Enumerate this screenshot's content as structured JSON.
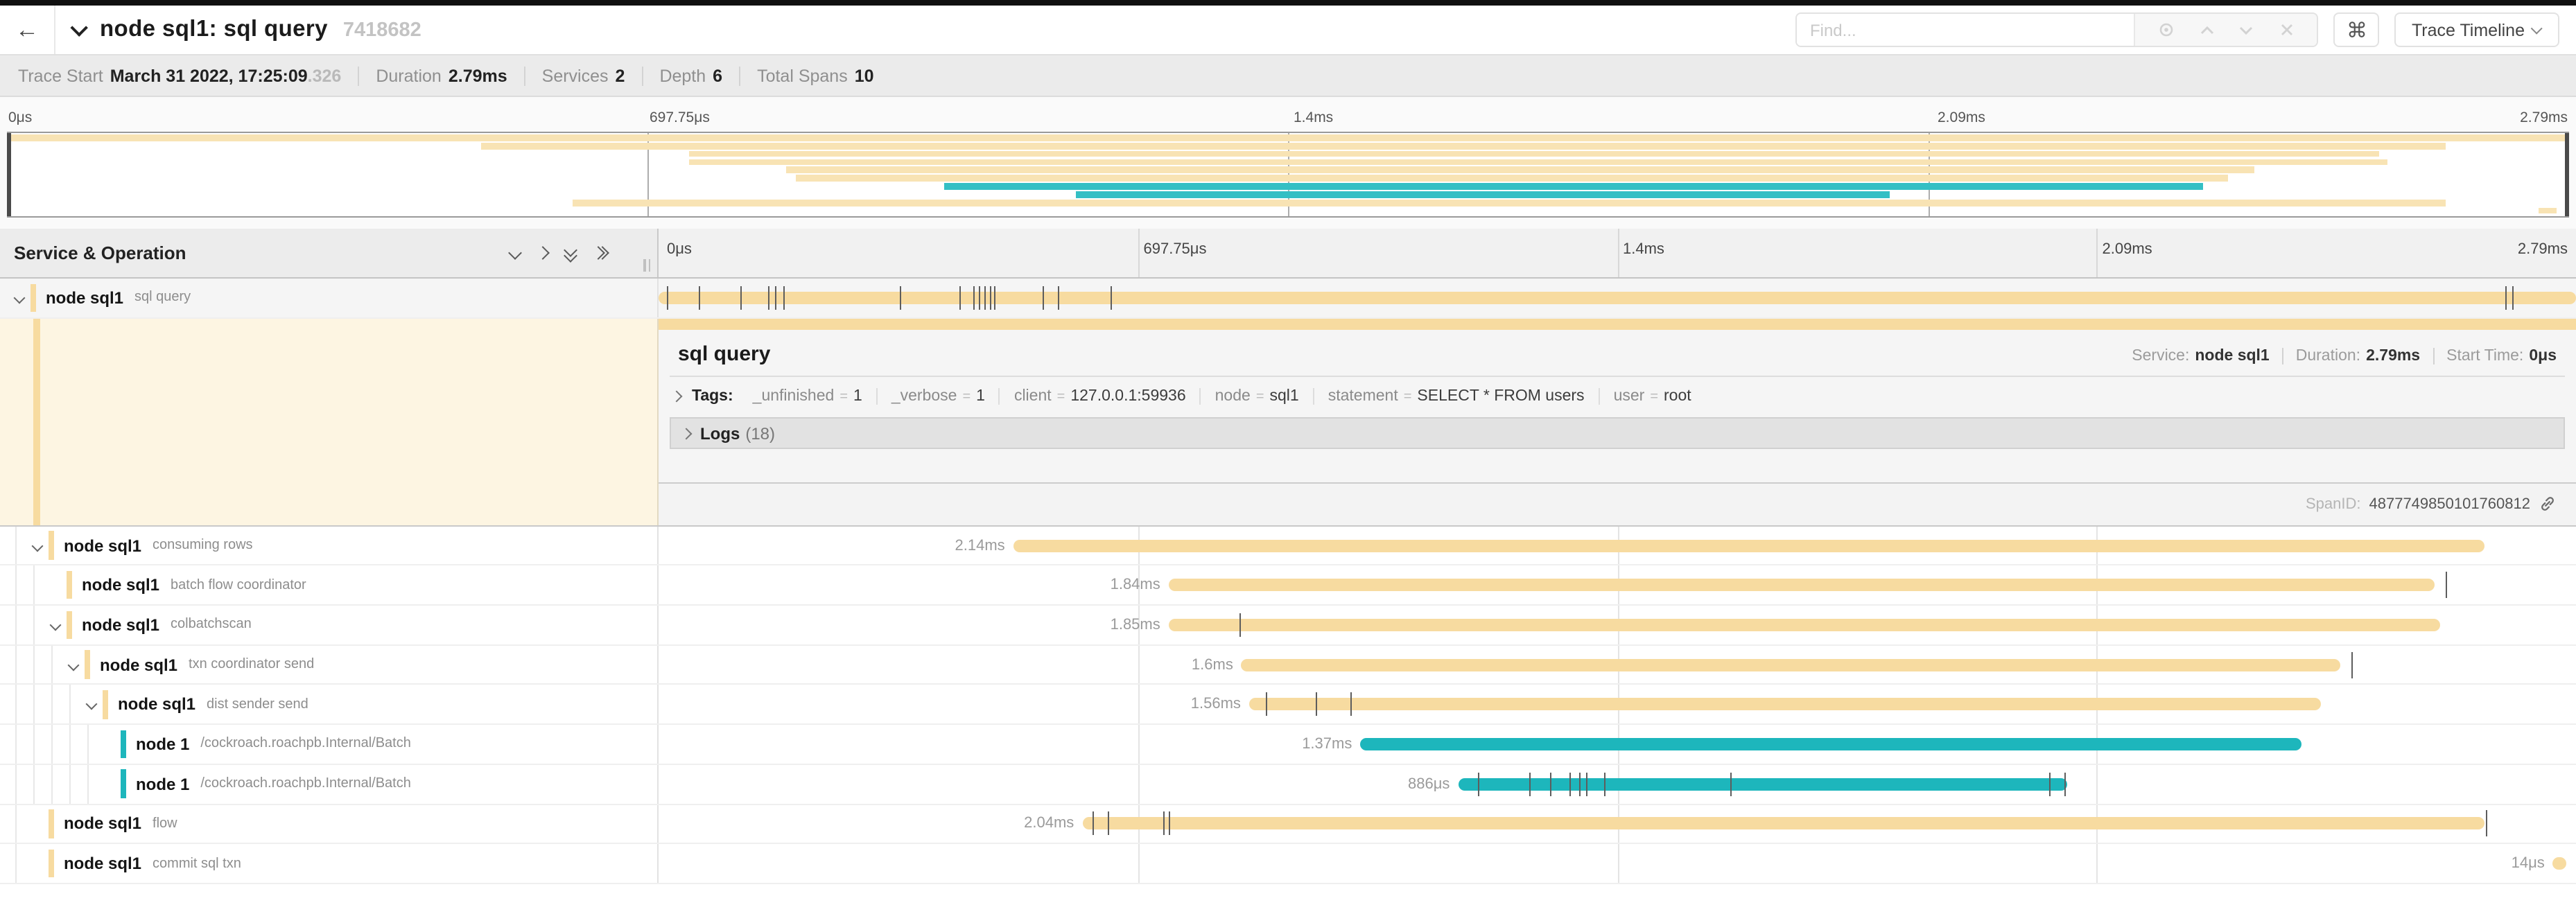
{
  "header": {
    "back_label": "←",
    "title": "node sql1: sql query",
    "trace_id": "7418682",
    "find_placeholder": "Find...",
    "shortcut_glyph": "⌘",
    "view_button": "Trace Timeline"
  },
  "trace_meta": {
    "items": [
      {
        "label": "Trace Start",
        "value": "March 31 2022, 17:25:09",
        "suffix": ".326"
      },
      {
        "label": "Duration",
        "value": "2.79ms"
      },
      {
        "label": "Services",
        "value": "2"
      },
      {
        "label": "Depth",
        "value": "6"
      },
      {
        "label": "Total Spans",
        "value": "10"
      }
    ]
  },
  "timeline": {
    "ticks": [
      {
        "label": "0μs",
        "pct": 0
      },
      {
        "label": "697.75μs",
        "pct": 25
      },
      {
        "label": "1.4ms",
        "pct": 50
      },
      {
        "label": "2.09ms",
        "pct": 75
      },
      {
        "label": "2.79ms",
        "pct": 100
      }
    ],
    "grid_pcts": [
      25,
      50,
      75
    ],
    "left_header": "Service & Operation"
  },
  "colors": {
    "tan": "#f7dba0",
    "teal": "#1db6bc",
    "detail_left_bg": "#fdf5e2"
  },
  "spans": [
    {
      "service": "node sql1",
      "operation": "sql query",
      "depth": 0,
      "expander": true,
      "color": "#f7dba0",
      "start_pct": 0,
      "width_pct": 100,
      "duration_label": "",
      "selected": true,
      "ticks": [
        0.4,
        2.1,
        4.3,
        5.7,
        6.1,
        6.5,
        12.6,
        15.7,
        16.4,
        16.7,
        17.0,
        17.3,
        17.5,
        20.0,
        20.8,
        23.6,
        96.3,
        96.7
      ],
      "end_tick": null
    },
    {
      "service": "node sql1",
      "operation": "consuming rows",
      "depth": 1,
      "expander": true,
      "color": "#f7dba0",
      "start_pct": 18.5,
      "width_pct": 76.7,
      "duration_label": "2.14ms",
      "ticks": [],
      "end_tick": null
    },
    {
      "service": "node sql1",
      "operation": "batch flow coordinator",
      "depth": 2,
      "expander": false,
      "color": "#f7dba0",
      "start_pct": 26.6,
      "width_pct": 66.0,
      "duration_label": "1.84ms",
      "ticks": [],
      "end_tick": 93.2
    },
    {
      "service": "node sql1",
      "operation": "colbatchscan",
      "depth": 2,
      "expander": true,
      "color": "#f7dba0",
      "start_pct": 26.6,
      "width_pct": 66.3,
      "duration_label": "1.85ms",
      "ticks": [
        30.3
      ],
      "end_tick": null
    },
    {
      "service": "node sql1",
      "operation": "txn coordinator send",
      "depth": 3,
      "expander": true,
      "color": "#f7dba0",
      "start_pct": 30.4,
      "width_pct": 57.3,
      "duration_label": "1.6ms",
      "ticks": [],
      "end_tick": 88.3
    },
    {
      "service": "node sql1",
      "operation": "dist sender send",
      "depth": 4,
      "expander": true,
      "color": "#f7dba0",
      "start_pct": 30.8,
      "width_pct": 55.9,
      "duration_label": "1.56ms",
      "ticks": [
        31.7,
        34.3,
        36.1
      ],
      "end_tick": null
    },
    {
      "service": "node 1",
      "operation": "/cockroach.roachpb.Internal/Batch",
      "depth": 5,
      "expander": false,
      "color": "#1db6bc",
      "start_pct": 36.6,
      "width_pct": 49.1,
      "duration_label": "1.37ms",
      "ticks": [],
      "end_tick": null
    },
    {
      "service": "node 1",
      "operation": "/cockroach.roachpb.Internal/Batch",
      "depth": 5,
      "expander": false,
      "color": "#1db6bc",
      "start_pct": 41.7,
      "width_pct": 31.8,
      "duration_label": "886μs",
      "ticks": [
        42.7,
        45.4,
        46.5,
        47.5,
        48.0,
        48.4,
        49.3,
        55.9,
        72.5,
        73.3
      ],
      "end_tick": null
    },
    {
      "service": "node sql1",
      "operation": "flow",
      "depth": 1,
      "expander": false,
      "color": "#f7dba0",
      "start_pct": 22.1,
      "width_pct": 73.1,
      "duration_label": "2.04ms",
      "ticks": [
        22.6,
        23.4,
        26.3,
        26.6
      ],
      "end_tick": 95.3
    },
    {
      "service": "node sql1",
      "operation": "commit sql txn",
      "depth": 1,
      "expander": false,
      "color": "#f7dba0",
      "start_pct": 98.8,
      "width_pct": 0.7,
      "duration_label": "14μs",
      "ticks": [],
      "end_tick": null
    }
  ],
  "detail": {
    "title": "sql query",
    "service_label": "Service:",
    "service_value": "node sql1",
    "duration_label": "Duration:",
    "duration_value": "2.79ms",
    "start_label": "Start Time:",
    "start_value": "0μs",
    "tags_label": "Tags:",
    "tags": [
      {
        "key": "_unfinished",
        "value": "1"
      },
      {
        "key": "_verbose",
        "value": "1"
      },
      {
        "key": "client",
        "value": "127.0.0.1:59936"
      },
      {
        "key": "node",
        "value": "sql1"
      },
      {
        "key": "statement",
        "value": "SELECT * FROM users"
      },
      {
        "key": "user",
        "value": "root"
      }
    ],
    "logs_label": "Logs",
    "logs_count": "(18)",
    "spanid_label": "SpanID:",
    "spanid_value": "4877749850101760812"
  }
}
